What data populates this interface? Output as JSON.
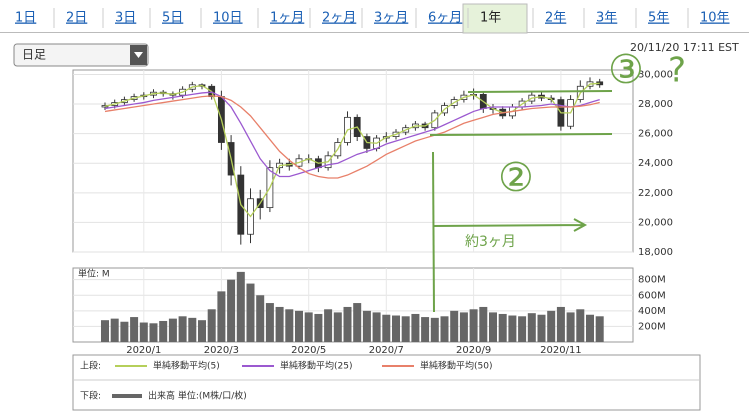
{
  "tabs": [
    "1日",
    "2日",
    "3日",
    "5日",
    "10日",
    "1ヶ月",
    "2ヶ月",
    "3ヶ月",
    "6ヶ月",
    "1年",
    "2年",
    "3年",
    "5年",
    "10年"
  ],
  "selected_tab": 9,
  "dropdown": "日足",
  "timestamp": "20/11/20 17:11 EST",
  "annotations": [
    "②",
    "③",
    "?",
    "約3ヶ月"
  ],
  "chart_data": [
    {
      "type": "candlestick",
      "legend_prefix": "上段:",
      "categories": [
        null,
        null,
        null,
        null,
        "2020/1",
        null,
        null,
        null,
        null,
        null,
        null,
        null,
        "2020/3",
        null,
        null,
        null,
        null,
        null,
        null,
        null,
        null,
        "2020/5",
        null,
        null,
        null,
        null,
        null,
        null,
        null,
        "2020/7",
        null,
        null,
        null,
        null,
        null,
        null,
        null,
        null,
        "2020/9",
        null,
        null,
        null,
        null,
        null,
        null,
        null,
        null,
        "2020/11",
        null,
        null,
        null,
        null
      ],
      "open": [
        27800,
        27900,
        28100,
        28300,
        28500,
        28600,
        28800,
        28700,
        28600,
        29000,
        29300,
        29200,
        28500,
        25400,
        23200,
        19200,
        21600,
        21000,
        23700,
        24000,
        23800,
        24300,
        24300,
        23700,
        24500,
        25400,
        27100,
        25800,
        25000,
        25700,
        25800,
        26100,
        26400,
        26650,
        26400,
        27400,
        27900,
        28300,
        28600,
        28650,
        27700,
        27650,
        27200,
        27800,
        28200,
        28600,
        28400,
        28300,
        26500,
        28300,
        29200,
        29500
      ],
      "high": [
        28100,
        28300,
        28500,
        28700,
        28800,
        29000,
        28950,
        28850,
        29200,
        29500,
        29400,
        29350,
        28900,
        25900,
        23800,
        22300,
        22200,
        24200,
        24300,
        24300,
        24600,
        24600,
        24500,
        24800,
        25700,
        27500,
        27300,
        26000,
        25900,
        26100,
        26300,
        26600,
        26850,
        26800,
        27600,
        28100,
        28500,
        28900,
        29050,
        28800,
        28000,
        27850,
        28000,
        28400,
        28800,
        28800,
        28600,
        28500,
        28600,
        29600,
        29800,
        29700
      ],
      "low": [
        27600,
        27700,
        27950,
        28150,
        28300,
        28400,
        28500,
        28300,
        28400,
        28800,
        29000,
        28300,
        24900,
        22500,
        18500,
        18600,
        20200,
        20700,
        23300,
        23500,
        23600,
        24000,
        23400,
        23500,
        24300,
        25200,
        25500,
        24700,
        24800,
        25400,
        25600,
        25900,
        26200,
        26200,
        26200,
        27200,
        27700,
        28100,
        28300,
        27400,
        27350,
        27000,
        27000,
        27600,
        28000,
        28200,
        28100,
        26200,
        26300,
        28100,
        29000,
        29100
      ],
      "close": [
        27900,
        28100,
        28300,
        28500,
        28600,
        28800,
        28700,
        28600,
        29000,
        29300,
        29200,
        28500,
        25400,
        23200,
        19200,
        21600,
        21000,
        23700,
        24000,
        23800,
        24300,
        24300,
        23700,
        24500,
        25400,
        27100,
        25800,
        25000,
        25700,
        25800,
        26100,
        26400,
        26650,
        26400,
        27400,
        27900,
        28300,
        28600,
        28650,
        27700,
        27650,
        27200,
        27800,
        28200,
        28600,
        28400,
        28300,
        26500,
        28300,
        29200,
        29500,
        29300
      ],
      "up_color": "#ffffff",
      "down_color": "#333333",
      "series": [
        {
          "name": "単純移動平均(5)",
          "color": "#b5cf5a",
          "values": [
            27850,
            28000,
            28200,
            28400,
            28550,
            28700,
            28750,
            28650,
            28800,
            29150,
            29250,
            28850,
            26950,
            24300,
            21200,
            20400,
            21300,
            22350,
            23850,
            23900,
            24050,
            24300,
            24000,
            24100,
            24950,
            26250,
            26450,
            25400,
            25350,
            25750,
            25950,
            26250,
            26520,
            26520,
            26900,
            27650,
            28100,
            28450,
            28620,
            28170,
            27680,
            27420,
            27500,
            28000,
            28400,
            28500,
            28350,
            27400,
            27400,
            28750,
            29350,
            29400
          ]
        },
        {
          "name": "単純移動平均(25)",
          "color": "#9b59d0",
          "values": [
            27700,
            27800,
            27900,
            28000,
            28100,
            28250,
            28350,
            28450,
            28550,
            28650,
            28750,
            28800,
            28500,
            27800,
            26700,
            25500,
            24300,
            23500,
            23100,
            23100,
            23300,
            23500,
            23700,
            23900,
            24000,
            24300,
            24600,
            24800,
            25000,
            25300,
            25500,
            25700,
            25900,
            26100,
            26300,
            26600,
            26900,
            27200,
            27500,
            27700,
            27800,
            27800,
            27800,
            27800,
            27850,
            27900,
            28000,
            27900,
            27800,
            27900,
            28100,
            28300
          ]
        },
        {
          "name": "単純移動平均(50)",
          "color": "#e8806a",
          "values": [
            27500,
            27600,
            27700,
            27800,
            27900,
            28000,
            28100,
            28200,
            28300,
            28400,
            28500,
            28550,
            28500,
            28250,
            27800,
            27200,
            26400,
            25600,
            24800,
            24200,
            23700,
            23300,
            23100,
            23000,
            23000,
            23200,
            23500,
            23800,
            24200,
            24600,
            24900,
            25200,
            25500,
            25700,
            25900,
            26100,
            26400,
            26700,
            26900,
            27100,
            27300,
            27400,
            27500,
            27600,
            27700,
            27750,
            27800,
            27800,
            27800,
            27850,
            27950,
            28100
          ]
        }
      ],
      "ylim": [
        18000,
        30300
      ],
      "yticks": [
        {
          "value": 18000,
          "label": "18,000"
        },
        {
          "value": 20000,
          "label": "20,000"
        },
        {
          "value": 22000,
          "label": "22,000"
        },
        {
          "value": 24000,
          "label": "24,000"
        },
        {
          "value": 26000,
          "label": "26,000"
        },
        {
          "value": 28000,
          "label": "28,000"
        },
        {
          "value": 30000,
          "label": "30,000"
        }
      ],
      "grid": true
    },
    {
      "type": "bar",
      "legend_prefix": "下段:",
      "unit_label": "単位: M",
      "series": [
        {
          "name": "出来高 単位:(M株/口/枚)",
          "color": "#666666",
          "values": [
            280,
            300,
            260,
            320,
            250,
            240,
            270,
            300,
            330,
            310,
            280,
            420,
            650,
            800,
            900,
            750,
            600,
            500,
            450,
            420,
            400,
            380,
            360,
            420,
            380,
            450,
            500,
            400,
            380,
            350,
            340,
            330,
            360,
            320,
            310,
            330,
            400,
            380,
            420,
            450,
            380,
            360,
            340,
            330,
            370,
            350,
            400,
            450,
            380,
            420,
            350,
            330
          ]
        }
      ],
      "ylim": [
        0,
        950
      ],
      "yticks": [
        {
          "value": 200,
          "label": "200M"
        },
        {
          "value": 400,
          "label": "400M"
        },
        {
          "value": 600,
          "label": "600M"
        },
        {
          "value": 800,
          "label": "800M"
        }
      ],
      "grid": true
    }
  ]
}
